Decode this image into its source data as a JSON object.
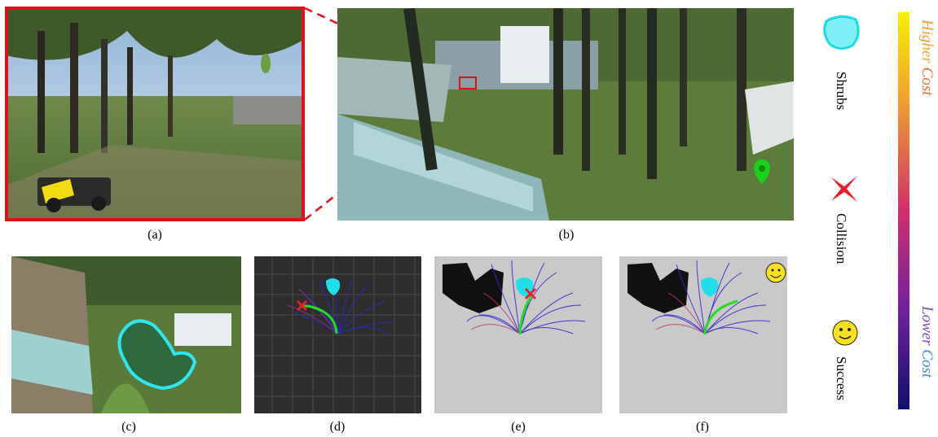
{
  "captions": {
    "a": "(a)",
    "b": "(b)",
    "c": "(c)",
    "d": "(d)",
    "e": "(e)",
    "f": "(f)"
  },
  "legend": {
    "shrubs": "Shrubs",
    "collision": "Collision",
    "success": "Success"
  },
  "colorbar": {
    "higher_prefix": "Higher ",
    "higher_suffix": "Cost",
    "lower_prefix": "Lower ",
    "lower_suffix": "Cost",
    "gradient_top": "#f5f000",
    "gradient_mid": "#d0306a",
    "gradient_bottom": "#10106a"
  },
  "colors": {
    "highlight_frame": "#e0101a",
    "shrub_outline": "#2fe6f0",
    "shrub_fill": "#7ff0f5",
    "collision_marker": "#e8202a",
    "success_face": "#f6e020",
    "selected_path": "#22dd22",
    "goal_marker": "#19d119"
  },
  "icons": {
    "shrub": "shrub-blob-icon",
    "collision": "cross-icon",
    "success": "smiley-icon",
    "goal": "map-pin-icon"
  }
}
